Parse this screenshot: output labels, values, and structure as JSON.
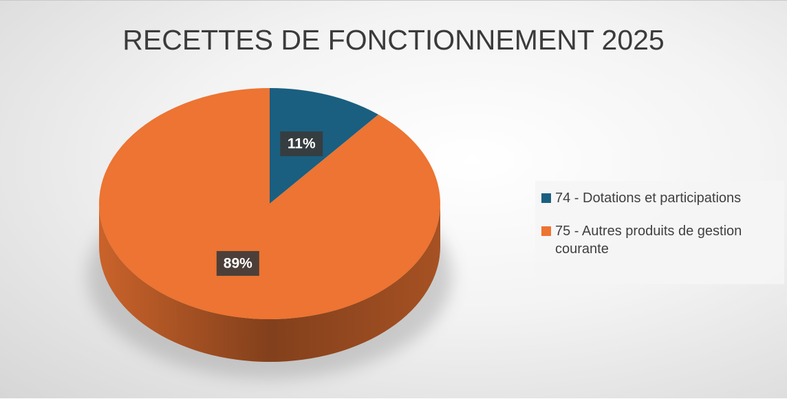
{
  "chart_data": {
    "type": "pie",
    "title": "RECETTES DE FONCTIONNEMENT 2025",
    "categories": [
      "74 - Dotations et participations",
      "75 - Autres produits de gestion courante"
    ],
    "values": [
      11,
      89
    ],
    "value_labels": [
      "11%",
      "89%"
    ],
    "colors": [
      "#1a5f80",
      "#ed7432"
    ],
    "legend": "right"
  }
}
